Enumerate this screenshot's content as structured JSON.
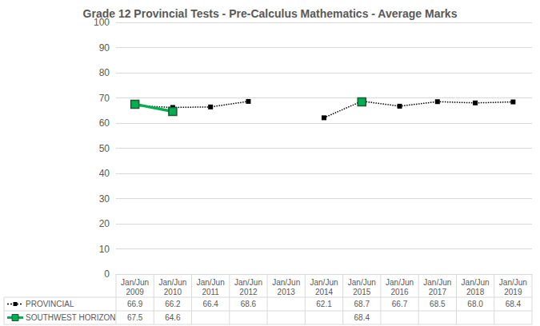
{
  "chart_data": {
    "type": "line",
    "title": "Grade 12 Provincial Tests - Pre-Calculus Mathematics - Average Marks",
    "categories": [
      "Jan/Jun\n2009",
      "Jan/Jun\n2010",
      "Jan/Jun\n2011",
      "Jan/Jun\n2012",
      "Jan/Jun\n2013",
      "Jan/Jun\n2014",
      "Jan/Jun\n2015",
      "Jan/Jun\n2016",
      "Jan/Jun\n2017",
      "Jan/Jun\n2018",
      "Jan/Jun\n2019"
    ],
    "series": [
      {
        "name": "PROVINCIAL",
        "color": "#000000",
        "marker": "square",
        "line_style": "dotted",
        "values": [
          66.9,
          66.2,
          66.4,
          68.6,
          null,
          62.1,
          68.7,
          66.7,
          68.5,
          68.0,
          68.4
        ],
        "value_labels": [
          "66.9",
          "66.2",
          "66.4",
          "68.6",
          null,
          "62.1",
          "68.7",
          "66.7",
          "68.5",
          "68.0",
          "68.4"
        ]
      },
      {
        "name": "SOUTHWEST HORIZON",
        "color": "#00b050",
        "marker": "square",
        "line_style": "solid",
        "values": [
          67.5,
          64.6,
          null,
          null,
          null,
          null,
          68.4,
          null,
          null,
          null,
          null
        ],
        "value_labels": [
          "67.5",
          "64.6",
          null,
          null,
          null,
          null,
          "68.4",
          null,
          null,
          null,
          null
        ]
      }
    ],
    "ylim": [
      0,
      100
    ],
    "yticks": [
      0,
      10,
      20,
      30,
      40,
      50,
      60,
      70,
      80,
      90,
      100
    ],
    "grid": true
  }
}
